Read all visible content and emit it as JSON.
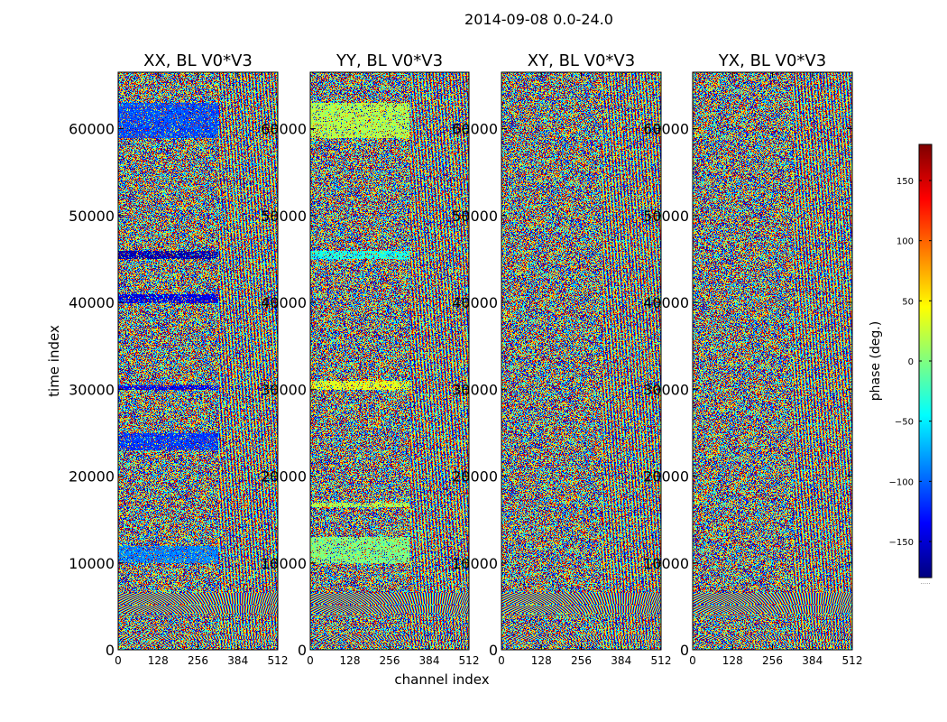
{
  "chart_data": {
    "type": "heatmap",
    "title": "2014-09-08 0.0-24.0",
    "xlabel": "channel index",
    "ylabel": "time index",
    "x_range": [
      0,
      512
    ],
    "y_range": [
      0,
      66500
    ],
    "x_ticks": [
      "0",
      "128",
      "256",
      "384",
      "512"
    ],
    "y_ticks": [
      "0",
      "10000",
      "20000",
      "30000",
      "40000",
      "50000",
      "60000"
    ],
    "panels": [
      {
        "title": "XX, BL V0*V3",
        "show_ylabel": true
      },
      {
        "title": "YY, BL V0*V3",
        "show_ylabel": false
      },
      {
        "title": "XY, BL V0*V3",
        "show_ylabel": false
      },
      {
        "title": "YX, BL V0*V3",
        "show_ylabel": false
      }
    ],
    "colorbar": {
      "label": "phase (deg.)",
      "range": [
        -180,
        180
      ],
      "ticks": [
        "150",
        "100",
        "50",
        "0",
        "−50",
        "−100",
        "−150"
      ],
      "colormap": "jet",
      "extra_mark": "....."
    },
    "grid": false,
    "legend": "none"
  }
}
